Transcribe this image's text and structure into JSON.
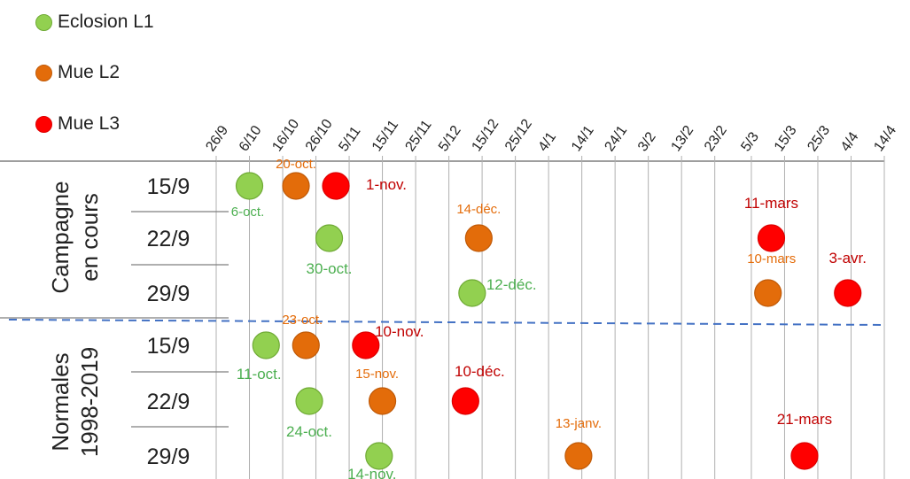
{
  "legend": [
    {
      "label": "Eclosion L1",
      "color": "#92d050",
      "stroke": "#6faa35"
    },
    {
      "label": "Mue L2",
      "color": "#e36c0a",
      "stroke": "#c05a08"
    },
    {
      "label": "Mue L3",
      "color": "#ff0000",
      "stroke": "#dd0000"
    }
  ],
  "groups": [
    {
      "label_line1": "Campagne",
      "label_line2": "en cours"
    },
    {
      "label_line1": "Normales",
      "label_line2": "1998-2019"
    }
  ],
  "chart_data": {
    "type": "scatter",
    "x_ticks": [
      "26/9",
      "6/10",
      "16/10",
      "26/10",
      "5/11",
      "15/11",
      "25/11",
      "5/12",
      "15/12",
      "25/12",
      "4/1",
      "14/1",
      "24/1",
      "3/2",
      "13/2",
      "23/2",
      "5/3",
      "15/3",
      "25/3",
      "4/4",
      "14/4"
    ],
    "rows": [
      {
        "group": "Campagne en cours",
        "label": "15/9",
        "points": [
          {
            "series": "Eclosion L1",
            "x": "6-oct.",
            "label": "6-oct."
          },
          {
            "series": "Mue L2",
            "x": "20-oct.",
            "label": "20-oct."
          },
          {
            "series": "Mue L3",
            "x": "1-nov.",
            "label": "1-nov."
          }
        ]
      },
      {
        "group": "Campagne en cours",
        "label": "22/9",
        "points": [
          {
            "series": "Eclosion L1",
            "x": "30-oct.",
            "label": "30-oct."
          },
          {
            "series": "Mue L2",
            "x": "14-déc.",
            "label": "14-déc."
          },
          {
            "series": "Mue L3",
            "x": "11-mars",
            "label": "11-mars"
          }
        ]
      },
      {
        "group": "Campagne en cours",
        "label": "29/9",
        "points": [
          {
            "series": "Eclosion L1",
            "x": "12-déc.",
            "label": "12-déc."
          },
          {
            "series": "Mue L2",
            "x": "10-mars",
            "label": "10-mars"
          },
          {
            "series": "Mue L3",
            "x": "3-avr.",
            "label": "3-avr."
          }
        ]
      },
      {
        "group": "Normales 1998-2019",
        "label": "15/9",
        "points": [
          {
            "series": "Eclosion L1",
            "x": "11-oct.",
            "label": "11-oct."
          },
          {
            "series": "Mue L2",
            "x": "23-oct.",
            "label": "23-oct."
          },
          {
            "series": "Mue L3",
            "x": "10-nov.",
            "label": "10-nov."
          }
        ]
      },
      {
        "group": "Normales 1998-2019",
        "label": "22/9",
        "points": [
          {
            "series": "Eclosion L1",
            "x": "24-oct.",
            "label": "24-oct."
          },
          {
            "series": "Mue L2",
            "x": "15-nov.",
            "label": "15-nov."
          },
          {
            "series": "Mue L3",
            "x": "10-déc.",
            "label": "10-déc."
          }
        ]
      },
      {
        "group": "Normales 1998-2019",
        "label": "29/9",
        "points": [
          {
            "series": "Eclosion L1",
            "x": "14-nov.",
            "label": "14-nov."
          },
          {
            "series": "Mue L2",
            "x": "13-janv.",
            "label": "13-janv."
          },
          {
            "series": "Mue L3",
            "x": "21-mars",
            "label": "21-mars"
          }
        ]
      }
    ],
    "grid": true,
    "legend_position": "top-left"
  }
}
